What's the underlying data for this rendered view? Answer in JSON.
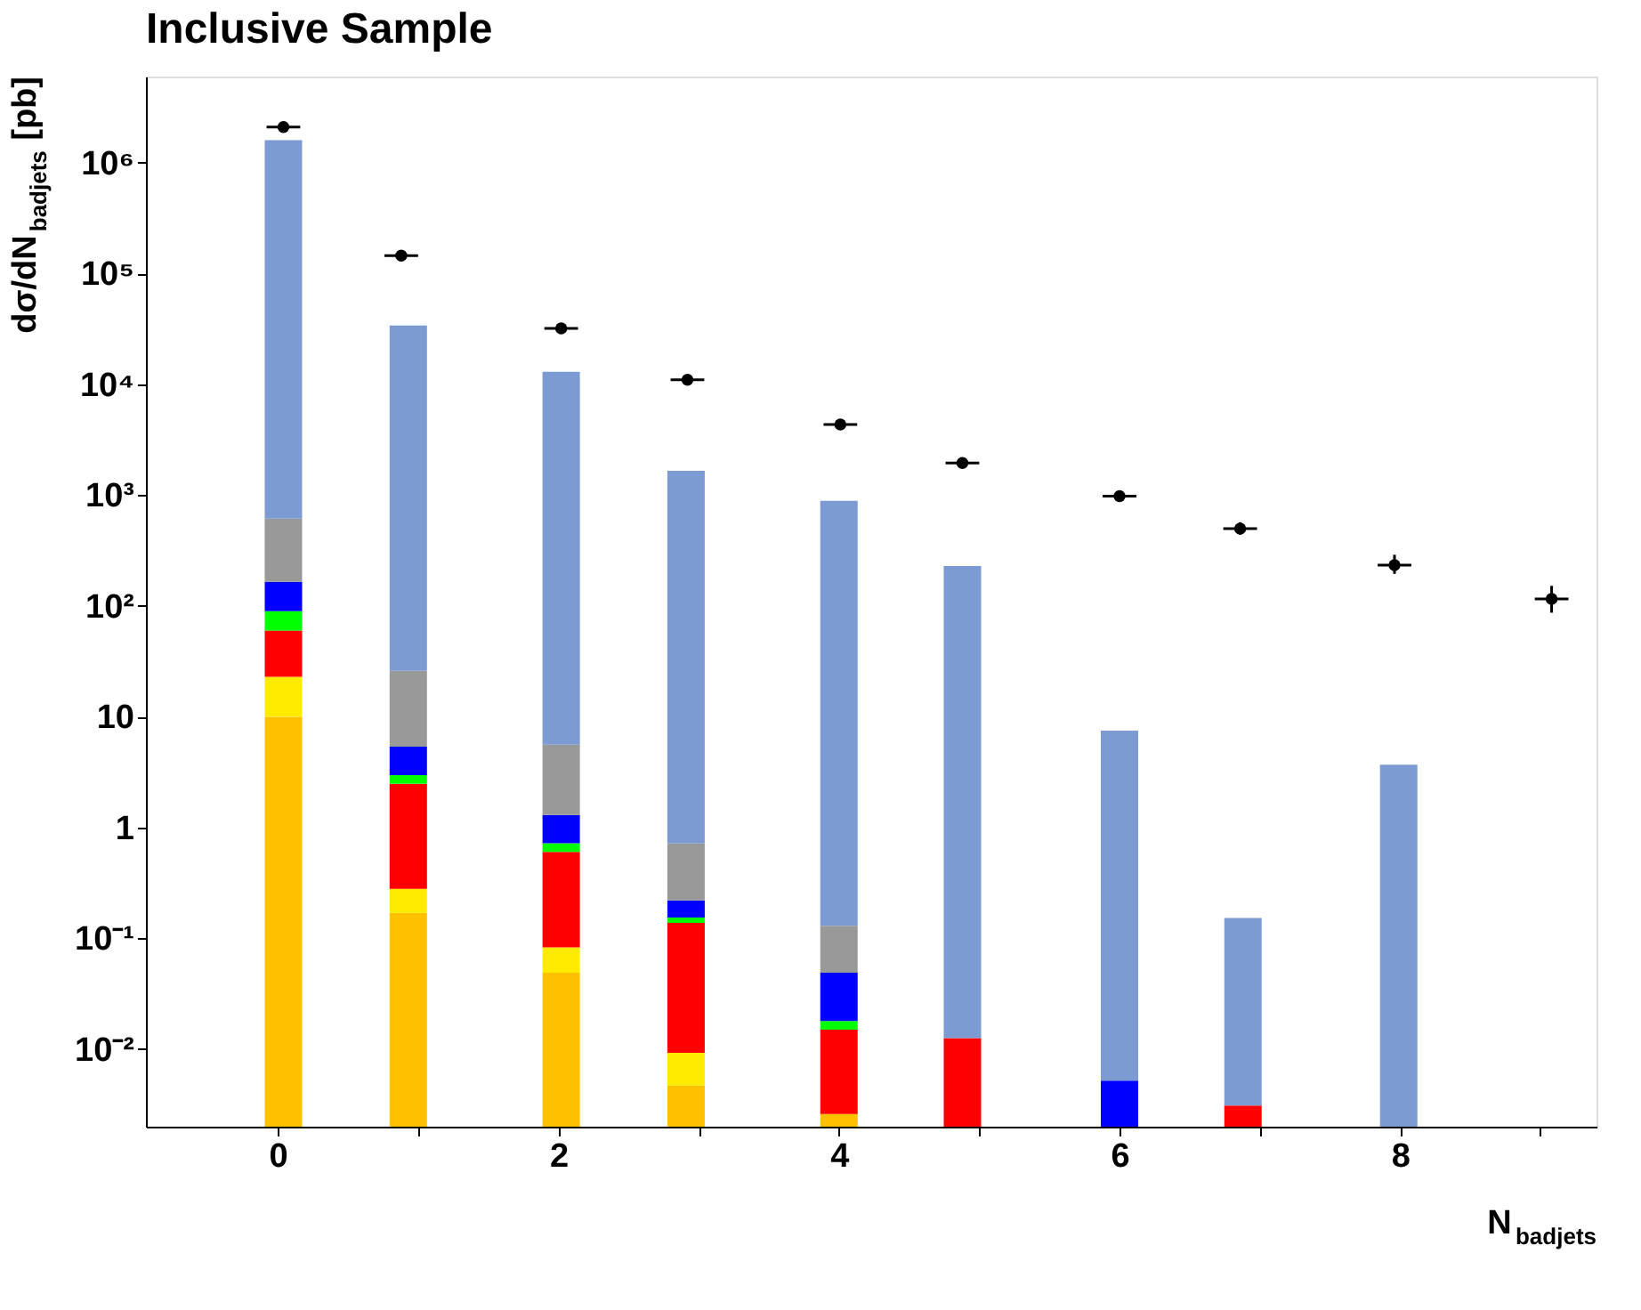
{
  "chart_data": {
    "type": "bar",
    "title": "Inclusive Sample",
    "xlabel": "N$_{badjets}$",
    "ylabel": "dσ/dN$_{badjets}$ [pb]",
    "x": [
      0.04,
      0.93,
      2.02,
      2.91,
      4.0,
      4.88,
      6.0,
      6.88,
      7.99
    ],
    "stacked": true,
    "log": "y",
    "grid": false,
    "legend": false,
    "series": [
      {
        "color": "#ffc000",
        "values": [
          10,
          0.17,
          0.049,
          0.0047,
          0.0026,
          null,
          null,
          null,
          null
        ]
      },
      {
        "color": "#ffeb00",
        "values": [
          13,
          0.11,
          0.034,
          0.0046,
          null,
          null,
          null,
          null,
          null
        ]
      },
      {
        "color": "#ff0000",
        "values": [
          37,
          2.2,
          0.52,
          0.129,
          0.0124,
          0.0126,
          null,
          0.0031,
          null
        ]
      },
      {
        "color": "#00ff00",
        "values": [
          30,
          0.5,
          0.12,
          0.016,
          0.003,
          null,
          null,
          null,
          null
        ]
      },
      {
        "color": "#0000ff",
        "values": [
          75,
          2.4,
          0.58,
          0.066,
          0.031,
          null,
          0.0052,
          null,
          null
        ]
      },
      {
        "color": "#999999",
        "values": [
          450,
          20.6,
          4.3,
          0.5,
          0.081,
          null,
          null,
          null,
          null
        ]
      },
      {
        "color": "#7b9bd2",
        "values": [
          1600000,
          34000,
          13000,
          1660,
          890,
          230,
          7.5,
          0.15,
          3.7
        ]
      },
      {
        "type": "scatter",
        "color": "#000000",
        "marker": "circle",
        "x": [
          0.04,
          0.88,
          2.02,
          2.92,
          4.01,
          4.88,
          6.0,
          6.86,
          7.96,
          9.08
        ],
        "values": [
          2100000,
          145000,
          32000,
          11000,
          4350,
          1950,
          980,
          500,
          234,
          116
        ],
        "errors": [
          null,
          null,
          null,
          null,
          null,
          null,
          null,
          [
            440,
            570
          ],
          [
            195,
            290
          ],
          [
            87,
            152
          ]
        ],
        "xerrors": [
          0.12,
          0.12,
          0.12,
          0.12,
          0.12,
          0.12,
          0.12,
          0.12,
          0.12,
          0.12
        ]
      }
    ],
    "xlim": [
      -0.94,
      9.4
    ],
    "xticks": [
      0,
      {
        "value": 1,
        "label": null
      },
      2,
      {
        "value": 3,
        "label": null
      },
      4,
      {
        "value": 5,
        "label": null
      },
      6,
      {
        "value": 7,
        "label": null
      },
      8,
      {
        "value": 9,
        "label": null
      }
    ],
    "ylim": [
      0.002,
      6000000
    ],
    "yticks": [
      {
        "value": 0.01,
        "label": "10⁻²"
      },
      {
        "value": 0.1,
        "label": "10⁻¹"
      },
      1,
      10,
      {
        "value": 100,
        "label": "10²"
      },
      {
        "value": 1000,
        "label": "10³"
      },
      {
        "value": 10000,
        "label": "10⁴"
      },
      {
        "value": 100000,
        "label": "10⁵"
      },
      {
        "value": 1000000,
        "label": "10⁶"
      }
    ]
  }
}
